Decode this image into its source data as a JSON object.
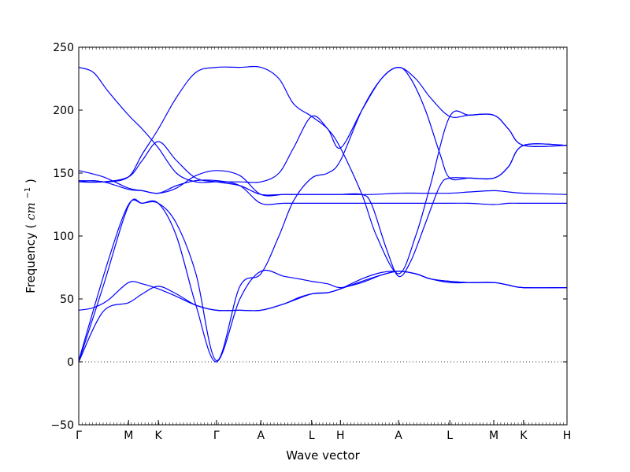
{
  "chart_data": {
    "type": "line",
    "title": "",
    "xlabel": "Wave vector",
    "ylabel": "Frequency",
    "ylabel_unit_base": "cm",
    "ylabel_unit_exp": "−1",
    "ylim": [
      -50,
      250
    ],
    "y_ticks": [
      -50,
      0,
      50,
      100,
      150,
      200,
      250
    ],
    "x_ticks": [
      {
        "label": "Γ",
        "pos": 0
      },
      {
        "label": "M",
        "pos": 0.102
      },
      {
        "label": "K",
        "pos": 0.163
      },
      {
        "label": "Γ",
        "pos": 0.282
      },
      {
        "label": "A",
        "pos": 0.373
      },
      {
        "label": "L",
        "pos": 0.477
      },
      {
        "label": "H",
        "pos": 0.536
      },
      {
        "label": "A",
        "pos": 0.655
      },
      {
        "label": "L",
        "pos": 0.76
      },
      {
        "label": "M",
        "pos": 0.85
      },
      {
        "label": "K",
        "pos": 0.911
      },
      {
        "label": "H",
        "pos": 1.0
      }
    ],
    "zero_line": true,
    "grid": false,
    "line_color": "#0000ff",
    "series": [
      {
        "x": [
          0,
          0.05,
          0.102,
          0.13,
          0.163,
          0.2,
          0.24,
          0.282,
          0.33,
          0.373,
          0.42,
          0.45,
          0.477,
          0.51,
          0.536,
          0.58,
          0.62,
          0.655,
          0.69,
          0.72,
          0.76,
          0.8,
          0.85,
          0.88,
          0.911,
          1.0
        ],
        "y": [
          0,
          60,
          124,
          126,
          126,
          100,
          45,
          0,
          50,
          72,
          68,
          66,
          64,
          62,
          59,
          63,
          69,
          72,
          70,
          66,
          64,
          63,
          63,
          61,
          59,
          59
        ]
      },
      {
        "x": [
          0,
          0.05,
          0.102,
          0.13,
          0.163,
          0.2,
          0.24,
          0.282,
          0.33,
          0.373,
          0.42,
          0.45,
          0.477,
          0.51,
          0.536,
          0.58,
          0.62,
          0.655,
          0.69,
          0.72,
          0.76,
          0.8,
          0.85,
          0.88,
          0.911,
          1.0
        ],
        "y": [
          0,
          40,
          47,
          54,
          60,
          54,
          45,
          41,
          41,
          41,
          46,
          51,
          54,
          55,
          58,
          66,
          71,
          72,
          70,
          66,
          64,
          63,
          63,
          61,
          59,
          59
        ]
      },
      {
        "x": [
          0,
          0.03,
          0.06,
          0.102,
          0.13,
          0.163,
          0.2,
          0.24,
          0.282,
          0.33,
          0.373,
          0.42,
          0.477,
          0.51,
          0.536,
          0.58,
          0.62,
          0.655,
          0.69,
          0.72,
          0.76,
          0.8,
          0.85,
          0.88,
          0.911,
          1.0
        ],
        "y": [
          41,
          43,
          49,
          63,
          62,
          58,
          52,
          45,
          41,
          41,
          41,
          46,
          54,
          55,
          58,
          64,
          69,
          72,
          70,
          66,
          63,
          63,
          63,
          61,
          59,
          59
        ]
      },
      {
        "x": [
          0,
          0.06,
          0.102,
          0.13,
          0.163,
          0.2,
          0.24,
          0.282,
          0.33,
          0.373,
          0.41,
          0.44,
          0.477,
          0.51,
          0.536,
          0.58,
          0.62,
          0.655,
          0.68,
          0.71,
          0.74,
          0.76,
          0.8,
          0.85,
          0.88,
          0.911,
          1.0
        ],
        "y": [
          1,
          80,
          125,
          126,
          126,
          110,
          70,
          1,
          60,
          70,
          100,
          128,
          146,
          150,
          160,
          200,
          225,
          234,
          225,
          200,
          165,
          146,
          146,
          146,
          155,
          172,
          172
        ]
      },
      {
        "x": [
          0,
          0.05,
          0.102,
          0.13,
          0.163,
          0.2,
          0.24,
          0.282,
          0.33,
          0.373,
          0.42,
          0.45,
          0.477,
          0.51,
          0.536,
          0.58,
          0.6,
          0.63,
          0.655,
          0.68,
          0.71,
          0.74,
          0.76,
          0.8,
          0.85,
          0.88,
          0.911,
          1.0
        ],
        "y": [
          152,
          147,
          138,
          136,
          134,
          138,
          148,
          152,
          148,
          133,
          133,
          133,
          133,
          133,
          133,
          133,
          125,
          90,
          68,
          80,
          110,
          140,
          146,
          146,
          146,
          155,
          172,
          172
        ]
      },
      {
        "x": [
          0,
          0.05,
          0.102,
          0.13,
          0.163,
          0.2,
          0.24,
          0.282,
          0.33,
          0.373,
          0.42,
          0.477,
          0.536,
          0.6,
          0.655,
          0.7,
          0.76,
          0.8,
          0.85,
          0.88,
          0.911,
          1.0
        ],
        "y": [
          144,
          143,
          137,
          136,
          134,
          140,
          144,
          144,
          140,
          126,
          126,
          126,
          126,
          126,
          126,
          126,
          126,
          126,
          125,
          126,
          126,
          126
        ]
      },
      {
        "x": [
          0,
          0.05,
          0.102,
          0.13,
          0.163,
          0.2,
          0.24,
          0.282,
          0.33,
          0.373,
          0.42,
          0.477,
          0.536,
          0.6,
          0.655,
          0.7,
          0.76,
          0.8,
          0.85,
          0.88,
          0.911,
          1.0
        ],
        "y": [
          143,
          143,
          147,
          160,
          175,
          160,
          146,
          143,
          140,
          133,
          133,
          133,
          133,
          133,
          134,
          134,
          134,
          135,
          136,
          135,
          134,
          133
        ]
      },
      {
        "x": [
          0,
          0.03,
          0.06,
          0.102,
          0.13,
          0.163,
          0.2,
          0.24,
          0.282,
          0.33,
          0.373,
          0.41,
          0.44,
          0.477,
          0.51,
          0.536,
          0.58,
          0.61,
          0.655,
          0.69,
          0.72,
          0.76,
          0.8,
          0.85,
          0.88,
          0.911,
          1.0
        ],
        "y": [
          234,
          230,
          215,
          196,
          185,
          170,
          150,
          143,
          143,
          143,
          143,
          150,
          170,
          195,
          185,
          170,
          133,
          100,
          70,
          100,
          140,
          195,
          196,
          196,
          185,
          172,
          172
        ]
      },
      {
        "x": [
          0,
          0.03,
          0.06,
          0.102,
          0.13,
          0.163,
          0.2,
          0.24,
          0.282,
          0.33,
          0.373,
          0.41,
          0.44,
          0.477,
          0.51,
          0.536,
          0.58,
          0.62,
          0.655,
          0.69,
          0.72,
          0.76,
          0.8,
          0.85,
          0.88,
          0.911,
          1.0
        ],
        "y": [
          143,
          144,
          143,
          147,
          165,
          185,
          210,
          230,
          234,
          234,
          234,
          225,
          205,
          195,
          185,
          170,
          200,
          225,
          234,
          225,
          210,
          195,
          196,
          196,
          185,
          172,
          172
        ]
      }
    ]
  }
}
